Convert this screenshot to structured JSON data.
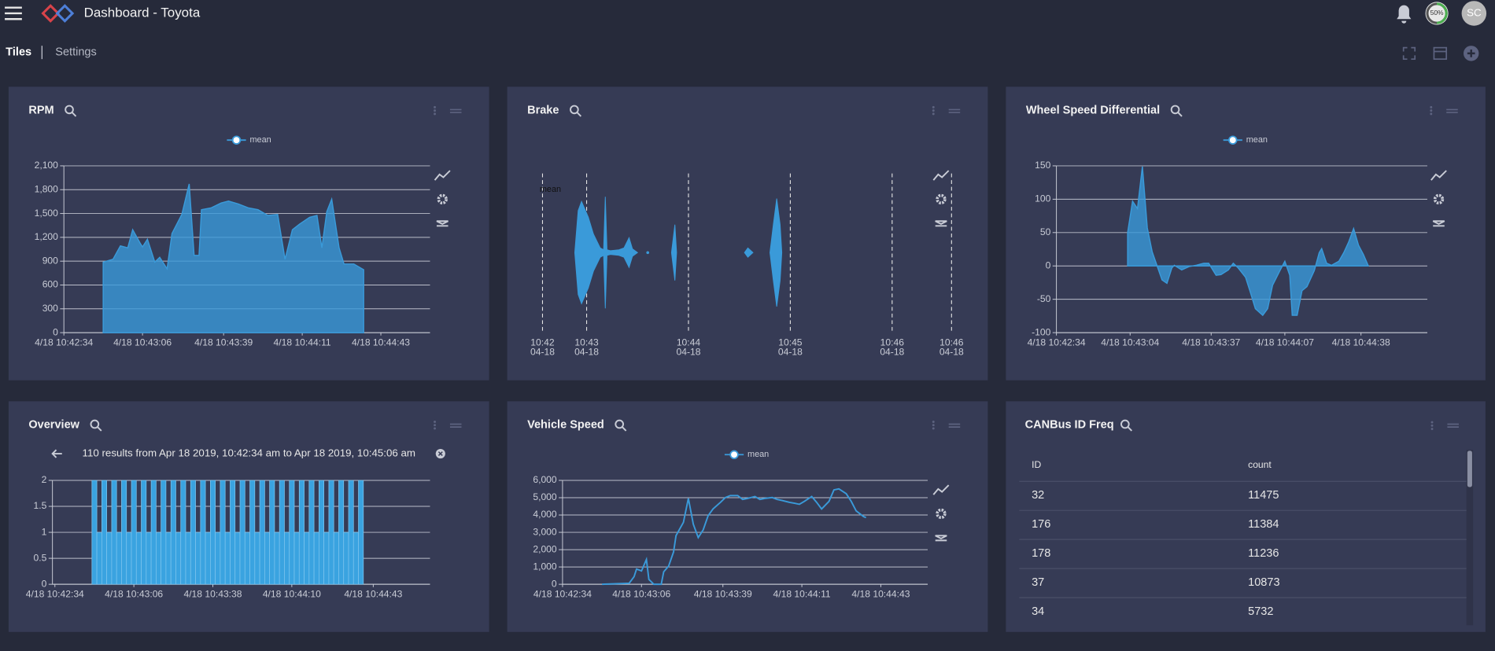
{
  "header": {
    "title": "Dashboard - Toyota",
    "progress": "50%",
    "avatar": "SC"
  },
  "tabs": [
    "Tiles",
    "Settings"
  ],
  "chart_data": [
    {
      "type": "area",
      "title": "RPM",
      "legend": "top",
      "x": [
        "10:42:50",
        "10:42:54",
        "10:42:57",
        "10:43:00",
        "10:43:02",
        "10:43:05",
        "10:43:06",
        "10:43:08",
        "10:43:11",
        "10:43:13",
        "10:43:16",
        "10:43:18",
        "10:43:22",
        "10:43:25",
        "10:43:27",
        "10:43:29",
        "10:43:30",
        "10:43:34",
        "10:43:38",
        "10:43:41",
        "10:43:45",
        "10:43:49",
        "10:43:53",
        "10:43:57",
        "10:44:01",
        "10:44:04",
        "10:44:07",
        "10:44:10",
        "10:44:14",
        "10:44:17",
        "10:44:19",
        "10:44:21",
        "10:44:23",
        "10:44:26",
        "10:44:28",
        "10:44:32",
        "10:44:36"
      ],
      "series": [
        {
          "name": "mean",
          "color": "#3a9ad9",
          "values": [
            888,
            924,
            1092,
            1068,
            1296,
            1128,
            1080,
            1176,
            888,
            948,
            804,
            1248,
            1488,
            1872,
            972,
            972,
            1548,
            1572,
            1632,
            1656,
            1620,
            1572,
            1548,
            1476,
            1488,
            924,
            1296,
            1368,
            1452,
            1476,
            1068,
            1524,
            1680,
            1068,
            864,
            864,
            792
          ]
        }
      ],
      "xlim": [
        "10:42:34",
        "10:45:03"
      ],
      "xticks": [
        {
          "value": "10:42:34",
          "label": "4/18 10:42:34"
        },
        {
          "value": "10:43:06",
          "label": "4/18 10:43:06"
        },
        {
          "value": "10:43:39",
          "label": "4/18 10:43:39"
        },
        {
          "value": "10:44:11",
          "label": "4/18 10:44:11"
        },
        {
          "value": "10:44:43",
          "label": "4/18 10:44:43"
        }
      ],
      "ylim": [
        0,
        2100
      ],
      "yticks": [
        0,
        300,
        600,
        900,
        {
          "value": 1200,
          "label": "1,200"
        },
        {
          "value": 1500,
          "label": "1,500"
        },
        {
          "value": 1800,
          "label": "1,800"
        },
        {
          "value": 2100,
          "label": "2,100"
        }
      ],
      "grid": true
    },
    {
      "type": "violin",
      "title": "Brake",
      "x": [
        "10:42:53",
        "10:42:55",
        "10:42:57",
        "10:43:01",
        "10:43:04",
        "10:43:08",
        "10:43:10",
        "10:43:11",
        "10:43:12",
        "10:43:14",
        "10:43:19",
        "10:43:22",
        "10:43:25",
        "10:43:27",
        "10:43:30",
        "10:43:33",
        "10:43:36",
        "10:43:43",
        "10:43:50",
        "10:43:52",
        "10:43:53",
        "10:44:10",
        "10:44:33",
        "10:44:35",
        "10:44:38",
        "10:44:42",
        "10:44:48",
        "10:44:50",
        "10:44:52",
        "10:44:54",
        "10:44:55"
      ],
      "series": [
        {
          "name": "mean",
          "color": "#3a9ad9",
          "values": [
            0,
            45,
            55,
            38,
            20,
            5,
            3,
            60,
            3,
            2,
            3,
            5,
            16,
            4,
            0,
            null,
            2,
            null,
            0,
            30,
            0,
            null,
            0,
            5,
            0,
            null,
            0,
            30,
            58,
            30,
            0
          ]
        }
      ],
      "xlim": [
        "10:42:34",
        "10:46:35"
      ],
      "xticks": [
        {
          "value": "10:42:34",
          "label": "10:42",
          "date": "04-18"
        },
        {
          "value": "10:43:00",
          "label": "10:43",
          "date": "04-18"
        },
        {
          "value": "10:44:00",
          "label": "10:44",
          "date": "04-18"
        },
        {
          "value": "10:45:00",
          "label": "10:45",
          "date": "04-18"
        },
        {
          "value": "10:46:00",
          "label": "10:46",
          "date": "04-18"
        },
        {
          "value": "10:46:35",
          "label": "10:46",
          "date": "04-18"
        }
      ],
      "ylim": [
        -85,
        85
      ]
    },
    {
      "type": "area",
      "title": "Wheel Speed Differential",
      "legend": "top",
      "x": [
        "10:43:03",
        "10:43:05",
        "10:43:07",
        "10:43:09",
        "10:43:11",
        "10:43:13",
        "10:43:15",
        "10:43:17",
        "10:43:19",
        "10:43:21",
        "10:43:22",
        "10:43:25",
        "10:43:28",
        "10:43:31",
        "10:43:34",
        "10:43:36",
        "10:43:39",
        "10:43:41",
        "10:43:44",
        "10:43:46",
        "10:43:48",
        "10:43:51",
        "10:43:53",
        "10:43:55",
        "10:43:58",
        "10:44:00",
        "10:44:02",
        "10:44:05",
        "10:44:07",
        "10:44:09",
        "10:44:10",
        "10:44:12",
        "10:44:14",
        "10:44:16",
        "10:44:19",
        "10:44:21",
        "10:44:22",
        "10:44:24",
        "10:44:26",
        "10:44:29",
        "10:44:31",
        "10:44:33",
        "10:44:35",
        "10:44:37",
        "10:44:39",
        "10:44:41"
      ],
      "series": [
        {
          "name": "mean",
          "color": "#3a9ad9",
          "values": [
            50,
            97,
            86,
            149,
            57,
            21,
            0,
            -21,
            -26,
            -3,
            1,
            -6,
            -1,
            1,
            4,
            4,
            -14,
            -13,
            -6,
            4,
            -3,
            -17,
            -40,
            -64,
            -74,
            -64,
            -29,
            -7,
            7,
            -14,
            -74,
            -74,
            -37,
            -31,
            -7,
            20,
            26,
            4,
            1,
            7,
            20,
            36,
            56,
            31,
            17,
            0
          ]
        }
      ],
      "xlim": [
        "10:42:34",
        "10:45:05"
      ],
      "xticks": [
        {
          "value": "10:42:34",
          "label": "4/18 10:42:34"
        },
        {
          "value": "10:43:04",
          "label": "4/18 10:43:04"
        },
        {
          "value": "10:43:37",
          "label": "4/18 10:43:37"
        },
        {
          "value": "10:44:07",
          "label": "4/18 10:44:07"
        },
        {
          "value": "10:44:38",
          "label": "4/18 10:44:38"
        }
      ],
      "ylim": [
        -100,
        150
      ],
      "yticks": [
        -100,
        -50,
        0,
        50,
        100,
        150
      ],
      "grid": true
    },
    {
      "type": "histogram",
      "title": "Overview",
      "subtitle": "110 results from Apr 18 2019, 10:42:34 am to Apr 18 2019, 10:45:06 am",
      "color": "#3aa3e0",
      "bins": [
        "10:42:49",
        "10:42:51",
        "10:42:53",
        "10:42:55",
        "10:42:57",
        "10:42:59",
        "10:43:01",
        "10:43:03",
        "10:43:05",
        "10:43:07",
        "10:43:09",
        "10:43:11",
        "10:43:13",
        "10:43:15",
        "10:43:17",
        "10:43:19",
        "10:43:21",
        "10:43:23",
        "10:43:25",
        "10:43:27",
        "10:43:29",
        "10:43:31",
        "10:43:33",
        "10:43:35",
        "10:43:37",
        "10:43:39",
        "10:43:41",
        "10:43:43",
        "10:43:45",
        "10:43:47",
        "10:43:49",
        "10:43:51",
        "10:43:53",
        "10:43:55",
        "10:43:57",
        "10:43:59",
        "10:44:01",
        "10:44:03",
        "10:44:05",
        "10:44:07",
        "10:44:09",
        "10:44:11",
        "10:44:13",
        "10:44:15",
        "10:44:17",
        "10:44:19",
        "10:44:21",
        "10:44:23",
        "10:44:25",
        "10:44:27",
        "10:44:29",
        "10:44:31",
        "10:44:33",
        "10:44:35",
        "10:44:37",
        "10:44:39"
      ],
      "values": [
        2,
        1,
        2,
        1,
        2,
        1,
        2,
        1,
        2,
        1,
        2,
        1,
        2,
        1,
        2,
        1,
        2,
        1,
        2,
        1,
        2,
        1,
        2,
        1,
        2,
        1,
        2,
        1,
        2,
        1,
        2,
        1,
        2,
        1,
        2,
        1,
        2,
        1,
        2,
        1,
        2,
        1,
        2,
        1,
        2,
        1,
        2,
        1,
        2,
        1,
        2,
        1,
        2,
        1,
        2
      ],
      "xlim": [
        "10:42:33",
        "10:45:06"
      ],
      "xticks": [
        {
          "value": "10:42:34",
          "label": "4/18 10:42:34"
        },
        {
          "value": "10:43:06",
          "label": "4/18 10:43:06"
        },
        {
          "value": "10:43:38",
          "label": "4/18 10:43:38"
        },
        {
          "value": "10:44:10",
          "label": "4/18 10:44:10"
        },
        {
          "value": "10:44:43",
          "label": "4/18 10:44:43"
        }
      ],
      "ylim": [
        0,
        2
      ],
      "yticks": [
        0,
        0.5,
        1,
        1.5,
        2
      ],
      "grid": true
    },
    {
      "type": "line",
      "title": "Vehicle Speed",
      "legend": "top",
      "x": [
        "10:42:50",
        "10:43:01",
        "10:43:03",
        "10:43:04",
        "10:43:06",
        "10:43:08",
        "10:43:09",
        "10:43:11",
        "10:43:14",
        "10:43:15",
        "10:43:17",
        "10:43:19",
        "10:43:20",
        "10:43:23",
        "10:43:25",
        "10:43:27",
        "10:43:29",
        "10:43:31",
        "10:43:33",
        "10:43:35",
        "10:43:38",
        "10:43:40",
        "10:43:42",
        "10:43:45",
        "10:43:47",
        "10:43:49",
        "10:43:52",
        "10:43:54",
        "10:43:56",
        "10:43:59",
        "10:44:01",
        "10:44:03",
        "10:44:06",
        "10:44:08",
        "10:44:10",
        "10:44:12",
        "10:44:15",
        "10:44:17",
        "10:44:19",
        "10:44:22",
        "10:44:24",
        "10:44:26",
        "10:44:29",
        "10:44:31",
        "10:44:33",
        "10:44:36",
        "10:44:37"
      ],
      "series": [
        {
          "name": "mean",
          "color": "#3a9ad9",
          "values": [
            0,
            60,
            440,
            880,
            770,
            1430,
            280,
            0,
            0,
            720,
            1050,
            1870,
            2810,
            3580,
            4960,
            3470,
            2700,
            3140,
            3960,
            4350,
            4730,
            5010,
            5120,
            5120,
            4900,
            4960,
            5070,
            4900,
            4960,
            5010,
            4900,
            4840,
            4730,
            4680,
            4620,
            4790,
            5070,
            4730,
            4350,
            4790,
            5450,
            5510,
            5230,
            4790,
            4240,
            3910,
            3850
          ]
        }
      ],
      "xlim": [
        "10:42:34",
        "10:45:02"
      ],
      "xticks": [
        {
          "value": "10:42:34",
          "label": "4/18 10:42:34"
        },
        {
          "value": "10:43:06",
          "label": "4/18 10:43:06"
        },
        {
          "value": "10:43:39",
          "label": "4/18 10:43:39"
        },
        {
          "value": "10:44:11",
          "label": "4/18 10:44:11"
        },
        {
          "value": "10:44:43",
          "label": "4/18 10:44:43"
        }
      ],
      "ylim": [
        0,
        6000
      ],
      "yticks": [
        0,
        {
          "value": 1000,
          "label": "1,000"
        },
        {
          "value": 2000,
          "label": "2,000"
        },
        {
          "value": 3000,
          "label": "3,000"
        },
        {
          "value": 4000,
          "label": "4,000"
        },
        {
          "value": 5000,
          "label": "5,000"
        },
        {
          "value": 6000,
          "label": "6,000"
        }
      ],
      "grid": true
    }
  ],
  "table": {
    "title": "CANBus ID Freq",
    "columns": [
      "ID",
      "count"
    ],
    "rows": [
      [
        32,
        11475
      ],
      [
        176,
        11384
      ],
      [
        178,
        11236
      ],
      [
        37,
        10873
      ],
      [
        34,
        5732
      ]
    ]
  }
}
